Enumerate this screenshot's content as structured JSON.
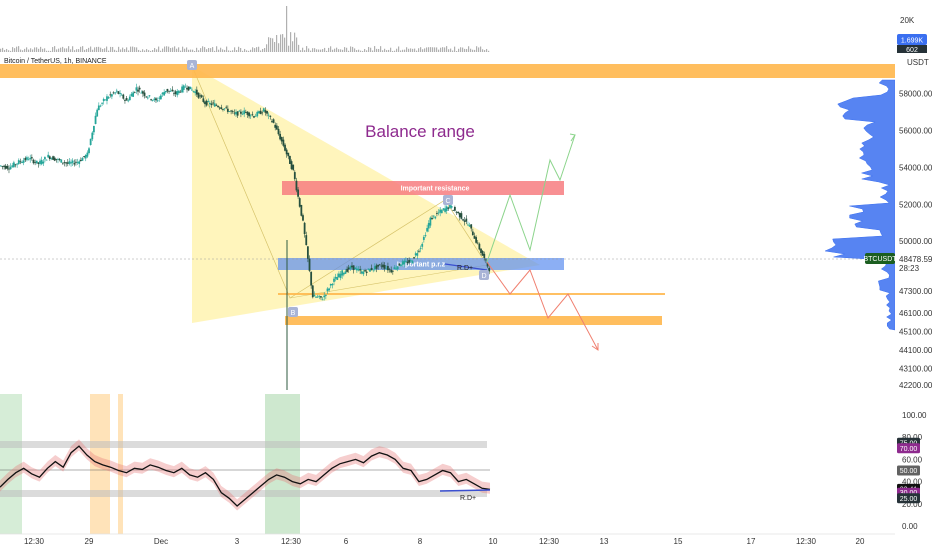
{
  "header": {
    "symbol_title": "Bitcoin / TetherUS, 1h, BINANCE"
  },
  "price_axis": {
    "labels": [
      "58000.00",
      "56000.00",
      "54000.00",
      "52000.00",
      "50000.00",
      "47300.00",
      "46100.00",
      "45100.00",
      "44100.00",
      "43100.00",
      "42200.00"
    ],
    "unit": "USDT",
    "current_price_tag": "48478.59",
    "symbol_tag": "BTCUSDT",
    "countdown": "28:23"
  },
  "volume_axis": {
    "top_label": "20K",
    "volume_tag": "1.699K",
    "small_tag": "602"
  },
  "time_axis": {
    "labels": [
      "12:30",
      "29",
      "Dec",
      "3",
      "12:30",
      "6",
      "8",
      "10",
      "12:30",
      "13",
      "15",
      "17",
      "12:30",
      "20"
    ]
  },
  "annotations": {
    "balance_range": "Balance range",
    "important_resistance": "Important resistance",
    "important_prz": "Important p.r.z",
    "prz_label": "R.D+",
    "point_a": "A",
    "point_b": "B",
    "point_c": "C",
    "point_d": "D"
  },
  "colors": {
    "candle_up": "#26a69a",
    "candle_down": "#26503e",
    "orange_zone": "#ffb74d",
    "resistance": "#f77c80",
    "prz": "#5b8def",
    "triangle": "#fff3b0",
    "bullish_path": "#8bd48b",
    "bearish_path": "#f08070",
    "volume_profile": "#3a6ff0",
    "rsi_line": "#111111",
    "rsi_band": "#e57373"
  },
  "chart_data": [
    {
      "type": "line",
      "panel": "price",
      "x_labels": [
        "12:30",
        "29",
        "Dec",
        "3",
        "12:30",
        "6",
        "8",
        "10",
        "12:30",
        "13",
        "15",
        "17",
        "12:30",
        "20"
      ],
      "ylim": [
        42200,
        59500
      ],
      "series": [
        {
          "name": "BTCUSDT",
          "x": [
            0,
            2,
            4,
            6,
            8,
            10,
            12,
            14,
            16,
            18,
            20,
            22,
            24,
            26,
            28,
            30,
            32,
            34,
            36,
            38,
            40,
            42,
            44,
            46,
            48,
            50,
            52,
            54,
            56,
            58,
            60,
            62,
            64,
            66,
            68,
            70,
            72,
            74,
            76,
            78,
            80,
            82,
            84,
            86,
            88,
            90,
            92,
            94,
            96,
            98,
            100
          ],
          "values": [
            54100,
            54000,
            54300,
            54500,
            54200,
            54600,
            54400,
            54200,
            54300,
            54700,
            57200,
            57800,
            58100,
            57600,
            58300,
            57900,
            57600,
            58200,
            58000,
            58400,
            58100,
            57500,
            57400,
            57200,
            56900,
            57000,
            56800,
            57100,
            56400,
            55200,
            53800,
            51000,
            47000,
            46900,
            47800,
            48300,
            48600,
            48300,
            48500,
            48700,
            48400,
            48800,
            48900,
            49700,
            51200,
            51600,
            51900,
            51400,
            50800,
            49600,
            48479
          ]
        }
      ],
      "levels": [
        {
          "label": "orange_top",
          "from": 58900,
          "to": 59400
        },
        {
          "label": "Important resistance",
          "from": 52300,
          "to": 52800
        },
        {
          "label": "Important p.r.z",
          "from": 48200,
          "to": 48700
        },
        {
          "label": "orange_line",
          "value": 46650
        },
        {
          "label": "orange_bottom",
          "from": 45300,
          "to": 45600
        }
      ]
    },
    {
      "type": "line",
      "panel": "oscillator",
      "ylim": [
        0,
        100
      ],
      "tick_labels": [
        "100.00",
        "80.00",
        "60.00",
        "40.00",
        "20.00",
        "0.00"
      ],
      "level_tags": [
        "75.00",
        "70.00",
        "50.00",
        "33.41",
        "30.00",
        "25.00"
      ],
      "series": [
        {
          "name": "RSI",
          "values": [
            35,
            42,
            48,
            52,
            47,
            44,
            52,
            58,
            53,
            66,
            72,
            64,
            58,
            55,
            53,
            50,
            48,
            52,
            51,
            55,
            53,
            50,
            48,
            52,
            46,
            44,
            48,
            42,
            30,
            25,
            18,
            24,
            30,
            36,
            42,
            46,
            44,
            40,
            38,
            42,
            40,
            46,
            52,
            56,
            58,
            60,
            57,
            63,
            66,
            64,
            60,
            52,
            50,
            40,
            42,
            46,
            50,
            48,
            40,
            42,
            38,
            34,
            33
          ]
        }
      ]
    }
  ]
}
